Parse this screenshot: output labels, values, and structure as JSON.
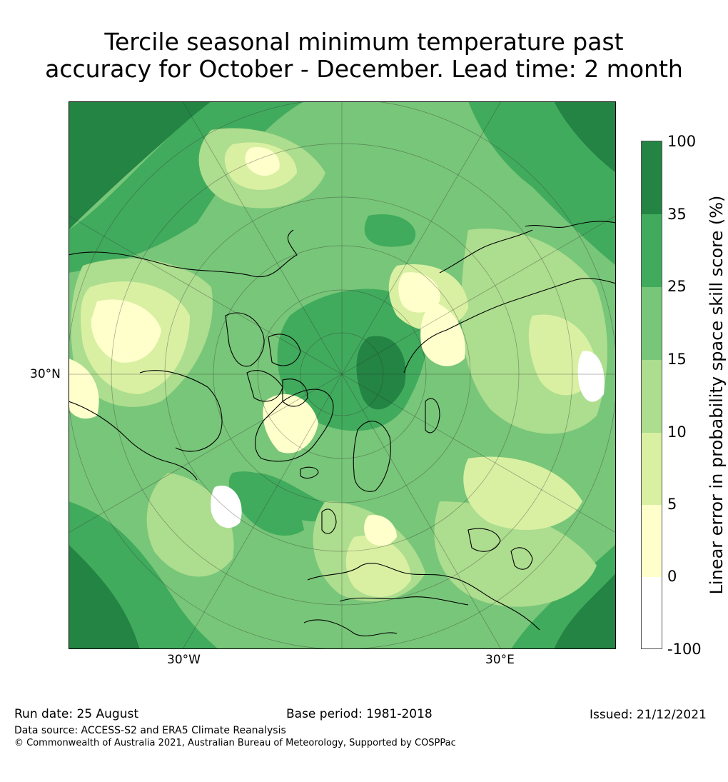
{
  "title_line1": "Tercile seasonal minimum temperature past",
  "title_line2": "accuracy for October - December. Lead time: 2 month",
  "map": {
    "projection": "north polar stereographic",
    "labels": {
      "lat": "30°N",
      "lon_west": "30°W",
      "lon_east": "30°E"
    },
    "colors": {
      "c_neg": "#ffffff",
      "c0": "#ffffcc",
      "c5": "#d9f0a3",
      "c10": "#addd8e",
      "c15": "#78c679",
      "c25": "#41ab5d",
      "c35": "#238443"
    }
  },
  "colorbar": {
    "label": "Linear error in probability space skill score (%)",
    "ticks": [
      "100",
      "35",
      "25",
      "15",
      "10",
      "5",
      "0",
      "-100"
    ],
    "bands": [
      {
        "range": "35 to 100",
        "color": "#238443"
      },
      {
        "range": "25 to 35",
        "color": "#41ab5d"
      },
      {
        "range": "15 to 25",
        "color": "#78c679"
      },
      {
        "range": "10 to 15",
        "color": "#addd8e"
      },
      {
        "range": "5 to 10",
        "color": "#d9f0a3"
      },
      {
        "range": "0 to 5",
        "color": "#ffffcc"
      },
      {
        "range": "-100 to 0",
        "color": "#ffffff"
      }
    ]
  },
  "footer": {
    "run_date": "Run date: 25 August",
    "base_period": "Base period: 1981-2018",
    "issued": "Issued: 21/12/2021",
    "data_source": "Data source: ACCESS-S2 and ERA5 Climate Reanalysis",
    "copyright": "© Commonwealth of Australia 2021, Australian Bureau of Meteorology, Supported by COSPPac"
  }
}
